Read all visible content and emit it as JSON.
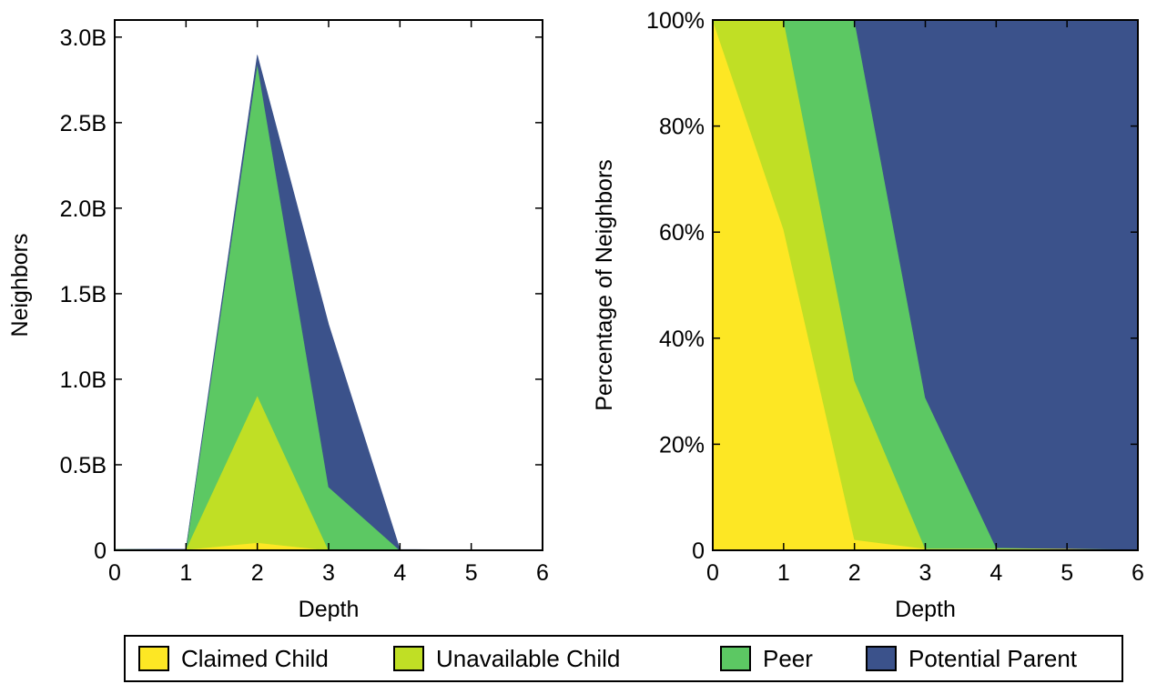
{
  "chart_data": [
    {
      "type": "area",
      "stacked": true,
      "xlabel": "Depth",
      "ylabel": "Neighbors",
      "x": [
        0,
        1,
        2,
        3,
        4,
        5,
        6
      ],
      "xticks": [
        "0",
        "1",
        "2",
        "3",
        "4",
        "5",
        "6"
      ],
      "xlim": [
        0,
        6
      ],
      "ylim": [
        0,
        3.1
      ],
      "y_units": "billions",
      "yticks": [
        {
          "value": 0,
          "label": "0"
        },
        {
          "value": 0.5,
          "label": "0.5B"
        },
        {
          "value": 1.0,
          "label": "1.0B"
        },
        {
          "value": 1.5,
          "label": "1.5B"
        },
        {
          "value": 2.0,
          "label": "2.0B"
        },
        {
          "value": 2.5,
          "label": "2.5B"
        },
        {
          "value": 3.0,
          "label": "3.0B"
        }
      ],
      "series": [
        {
          "name": "Claimed Child",
          "color": "#fde724",
          "values": [
            0.005,
            0.004,
            0.045,
            0.0,
            0.0,
            0.0,
            0.0
          ]
        },
        {
          "name": "Unavailable Child",
          "color": "#c0df25",
          "values": [
            0.0,
            0.003,
            0.86,
            0.0,
            0.0,
            0.0,
            0.0
          ]
        },
        {
          "name": "Peer",
          "color": "#5cc863",
          "values": [
            0.0,
            0.0,
            1.94,
            0.37,
            0.0,
            0.0,
            0.0
          ]
        },
        {
          "name": "Potential Parent",
          "color": "#3b528b",
          "values": [
            0.0,
            0.0,
            0.05,
            0.95,
            0.005,
            0.002,
            0.0
          ]
        }
      ],
      "grid": false
    },
    {
      "type": "area",
      "stacked": true,
      "xlabel": "Depth",
      "ylabel": "Percentage of Neighbors",
      "x": [
        0,
        1,
        2,
        3,
        4,
        5,
        6
      ],
      "xticks": [
        "0",
        "1",
        "2",
        "3",
        "4",
        "5",
        "6"
      ],
      "xlim": [
        0,
        6
      ],
      "ylim": [
        0,
        100
      ],
      "yticks": [
        {
          "value": 0,
          "label": "0"
        },
        {
          "value": 20,
          "label": "20%"
        },
        {
          "value": 40,
          "label": "40%"
        },
        {
          "value": 60,
          "label": "60%"
        },
        {
          "value": 80,
          "label": "80%"
        },
        {
          "value": 100,
          "label": "100%"
        }
      ],
      "series": [
        {
          "name": "Claimed Child",
          "color": "#fde724",
          "values": [
            100,
            60.5,
            2,
            0.3,
            0.3,
            0.3,
            0.2
          ]
        },
        {
          "name": "Unavailable Child",
          "color": "#c0df25",
          "values": [
            0,
            39.5,
            30,
            0,
            0,
            0,
            0
          ]
        },
        {
          "name": "Peer",
          "color": "#5cc863",
          "values": [
            0,
            0,
            68,
            28.5,
            0.2,
            0,
            0
          ]
        },
        {
          "name": "Potential Parent",
          "color": "#3b528b",
          "values": [
            0,
            0,
            0,
            71.2,
            99.5,
            99.7,
            99.8
          ]
        }
      ],
      "grid": false
    }
  ],
  "legend": {
    "position": "bottom-center",
    "items": [
      {
        "label": "Claimed Child",
        "color": "#fde724"
      },
      {
        "label": "Unavailable Child",
        "color": "#c0df25"
      },
      {
        "label": "Peer",
        "color": "#5cc863"
      },
      {
        "label": "Potential Parent",
        "color": "#3b528b"
      }
    ]
  }
}
